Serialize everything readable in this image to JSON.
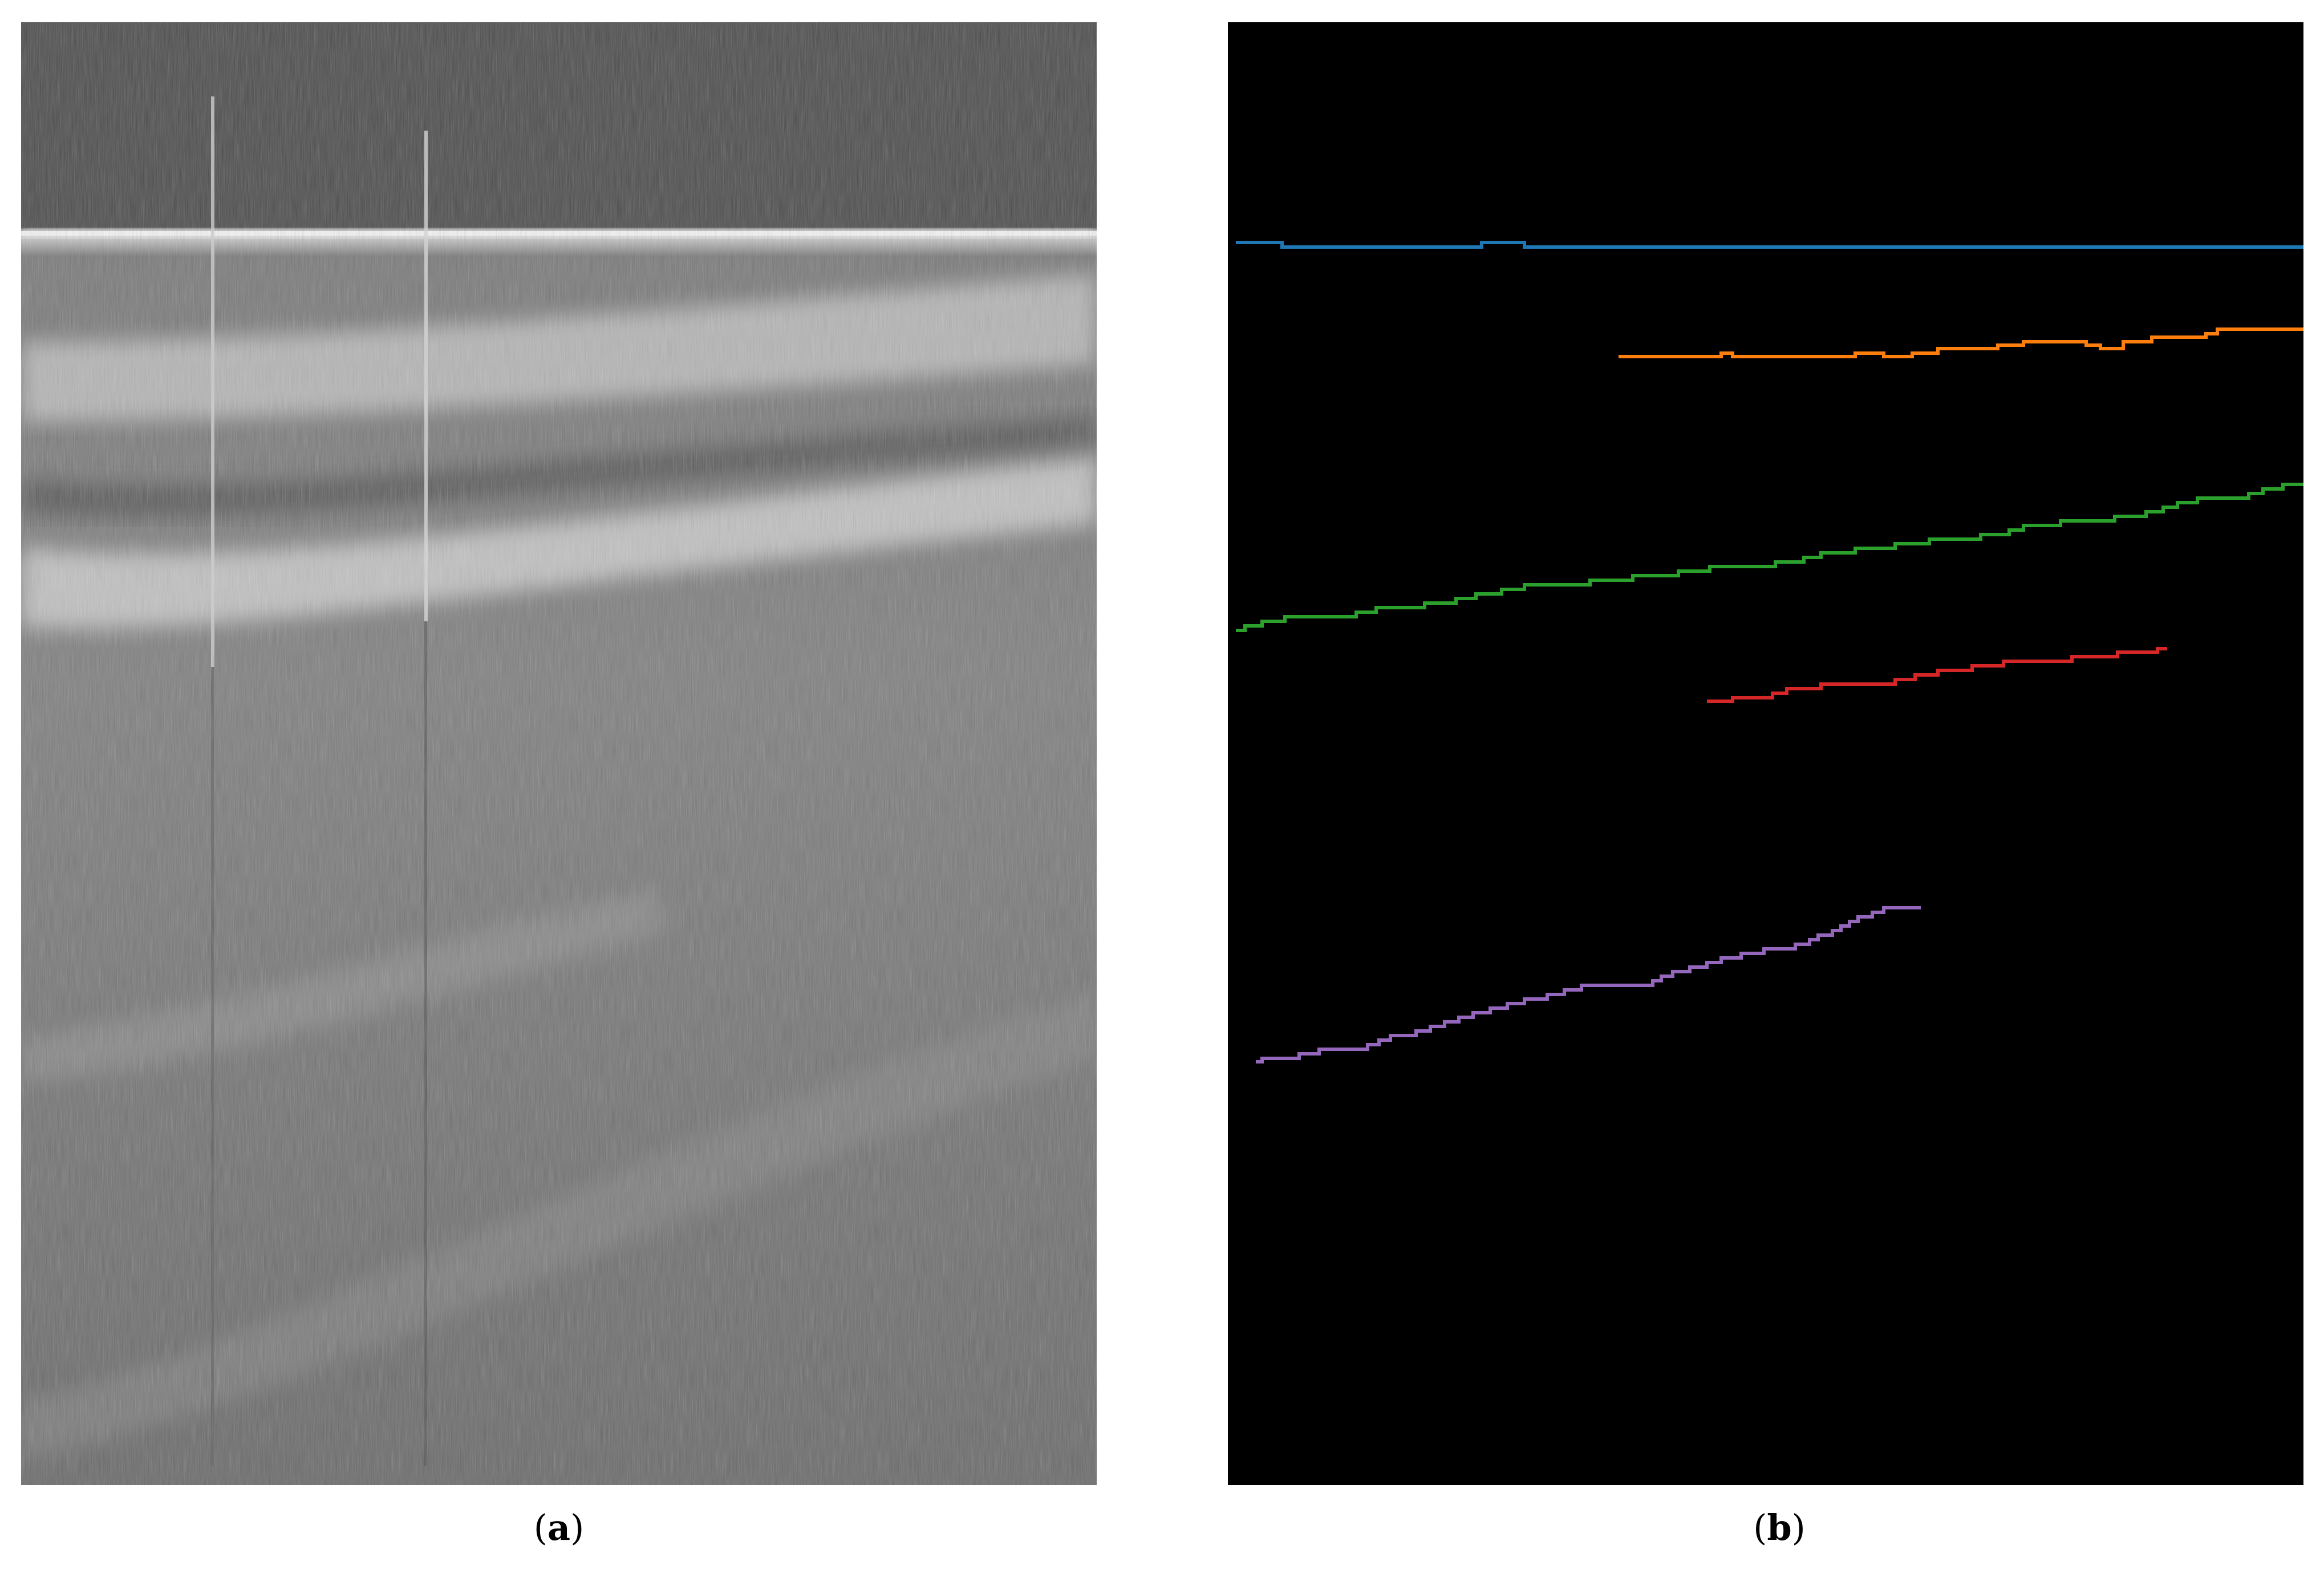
{
  "figure": {
    "panel_a": {
      "caption_open": "(",
      "caption_letter": "a",
      "caption_close": ")"
    },
    "panel_b": {
      "caption_open": "(",
      "caption_letter": "b",
      "caption_close": ")"
    }
  },
  "colors": {
    "surface_line": "#1f77b4",
    "layer_2": "#ff7f0e",
    "layer_3": "#2ca02c",
    "layer_4": "#d62728",
    "layer_5": "#9467bd",
    "panel_b_background": "#000000"
  }
}
